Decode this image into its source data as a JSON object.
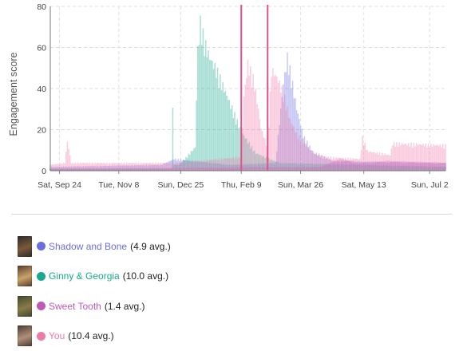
{
  "chart_data": {
    "type": "bar",
    "ylabel": "Engagement score",
    "xlabel": "",
    "ylim": [
      0,
      80
    ],
    "yticks": [
      0,
      20,
      40,
      60,
      80
    ],
    "x_range": [
      "2022-09-17",
      "2023-07-14"
    ],
    "xtick_labels": [
      "Sat, Sep 24",
      "Tue, Nov 8",
      "Sun, Dec 25",
      "Thu, Feb 9",
      "Sun, Mar 26",
      "Sat, May 13",
      "Sun, Jul 2"
    ],
    "xtick_dates": [
      "2022-09-24",
      "2022-11-08",
      "2022-12-25",
      "2023-02-09",
      "2023-03-26",
      "2023-05-13",
      "2023-07-02"
    ],
    "grid": true,
    "vertical_markers": [
      {
        "date": "2023-02-09",
        "color": "#e0508a"
      },
      {
        "date": "2023-03-01",
        "color": "#e0508a"
      }
    ],
    "series": [
      {
        "name": "Shadow and Bone",
        "avg": "(4.9 avg.)",
        "color": "#6b6ee0",
        "points": [
          [
            "2022-09-17",
            2
          ],
          [
            "2022-12-10",
            3
          ],
          [
            "2022-12-20",
            6
          ],
          [
            "2023-02-01",
            3
          ],
          [
            "2023-03-07",
            4
          ],
          [
            "2023-03-13",
            45
          ],
          [
            "2023-03-16",
            58
          ],
          [
            "2023-03-19",
            48
          ],
          [
            "2023-03-23",
            32
          ],
          [
            "2023-03-28",
            18
          ],
          [
            "2023-04-05",
            9
          ],
          [
            "2023-04-20",
            5
          ],
          [
            "2023-07-14",
            4
          ]
        ]
      },
      {
        "name": "Ginny & Georgia",
        "avg": "(10.0 avg.)",
        "color": "#1aa88e",
        "points": [
          [
            "2022-09-17",
            1
          ],
          [
            "2022-12-18",
            1
          ],
          [
            "2022-12-19",
            36
          ],
          [
            "2022-12-20",
            3
          ],
          [
            "2022-12-24",
            3
          ],
          [
            "2023-01-05",
            12
          ],
          [
            "2023-01-07",
            62
          ],
          [
            "2023-01-09",
            76
          ],
          [
            "2023-01-12",
            66
          ],
          [
            "2023-01-16",
            58
          ],
          [
            "2023-01-21",
            52
          ],
          [
            "2023-01-27",
            42
          ],
          [
            "2023-02-02",
            32
          ],
          [
            "2023-02-09",
            20
          ],
          [
            "2023-02-20",
            9
          ],
          [
            "2023-03-10",
            4
          ],
          [
            "2023-07-14",
            2
          ]
        ]
      },
      {
        "name": "Sweet Tooth",
        "avg": "(1.4 avg.)",
        "color": "#c058b8",
        "points": [
          [
            "2022-09-17",
            1
          ],
          [
            "2023-04-10",
            2
          ],
          [
            "2023-04-25",
            6
          ],
          [
            "2023-05-10",
            4
          ],
          [
            "2023-06-01",
            5
          ],
          [
            "2023-07-14",
            4
          ]
        ]
      },
      {
        "name": "You",
        "avg": "(10.4 avg.)",
        "color": "#f07aa8",
        "points": [
          [
            "2022-09-17",
            3
          ],
          [
            "2022-09-28",
            4
          ],
          [
            "2022-09-30",
            15
          ],
          [
            "2022-10-03",
            4
          ],
          [
            "2022-12-20",
            4
          ],
          [
            "2023-02-09",
            7
          ],
          [
            "2023-02-11",
            38
          ],
          [
            "2023-02-14",
            55
          ],
          [
            "2023-02-19",
            45
          ],
          [
            "2023-02-24",
            22
          ],
          [
            "2023-03-01",
            12
          ],
          [
            "2023-03-04",
            52
          ],
          [
            "2023-03-08",
            48
          ],
          [
            "2023-03-13",
            40
          ],
          [
            "2023-03-18",
            26
          ],
          [
            "2023-03-24",
            18
          ],
          [
            "2023-04-03",
            10
          ],
          [
            "2023-04-15",
            7
          ],
          [
            "2023-05-10",
            6
          ],
          [
            "2023-05-12",
            17
          ],
          [
            "2023-05-16",
            10
          ],
          [
            "2023-06-02",
            8
          ],
          [
            "2023-06-04",
            14
          ],
          [
            "2023-07-14",
            13
          ]
        ]
      }
    ]
  },
  "legend": [
    {
      "name": "Shadow and Bone",
      "avg": "(4.9 avg.)",
      "color": "#6b6ee0",
      "poster_colors": [
        "#2b2a2a",
        "#7a5a3a"
      ]
    },
    {
      "name": "Ginny & Georgia",
      "avg": "(10.0 avg.)",
      "color": "#1aa88e",
      "poster_colors": [
        "#5b3a2a",
        "#c9a36a"
      ]
    },
    {
      "name": "Sweet Tooth",
      "avg": "(1.4 avg.)",
      "color": "#c058b8",
      "poster_colors": [
        "#3d4a2a",
        "#8a7a4a"
      ]
    },
    {
      "name": "You",
      "avg": "(10.4 avg.)",
      "color": "#f07aa8",
      "poster_colors": [
        "#4a3a30",
        "#b0907a"
      ]
    }
  ]
}
